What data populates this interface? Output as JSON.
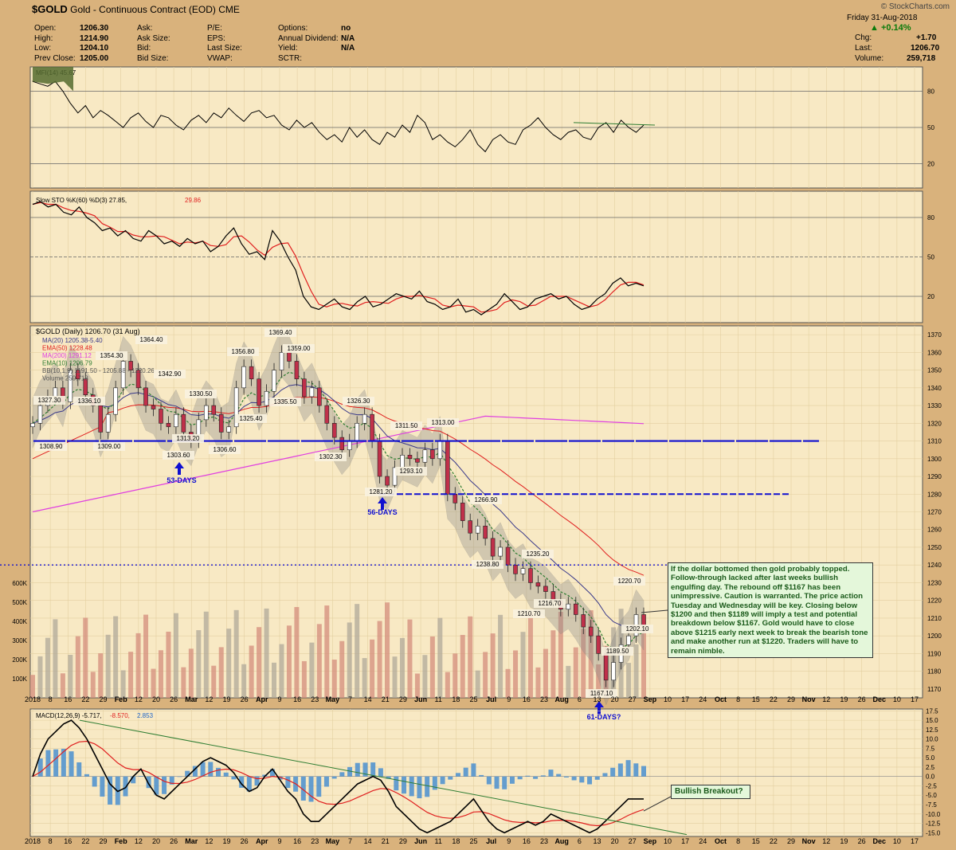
{
  "header": {
    "symbol": "$GOLD",
    "name": "Gold - Continuous Contract (EOD)",
    "exchange": "CME",
    "brand": "© StockCharts.com",
    "date": "Friday  31-Aug-2018",
    "change_pct": "+0.14%",
    "chg_label": "Chg:",
    "chg_value": "+1.70",
    "last_label": "Last:",
    "last_value": "1206.70",
    "volume_label": "Volume:",
    "volume_value": "259,718",
    "col1": [
      [
        "Open:",
        "1206.30"
      ],
      [
        "High:",
        "1214.90"
      ],
      [
        "Low:",
        "1204.10"
      ],
      [
        "Prev Close:",
        "1205.00"
      ]
    ],
    "col2": [
      "Ask:",
      "Ask Size:",
      "Bid:",
      "Bid Size:"
    ],
    "col3": [
      "P/E:",
      "EPS:",
      "Last Size:",
      "VWAP:"
    ],
    "col4": [
      [
        "Options:",
        "no"
      ],
      [
        "Annual Dividend:",
        "N/A"
      ],
      [
        "Yield:",
        "N/A"
      ],
      [
        "SCTR:",
        ""
      ]
    ]
  },
  "colors": {
    "bg": "#d9b27c",
    "panel": "#f8e9c4",
    "up": "#ffffff",
    "down": "#c0304a",
    "blue": "#1010d0",
    "green": "#2e7d32",
    "red": "#e02020",
    "magenta": "#e040e0",
    "ma20": "#3a3a8a"
  },
  "mfi": {
    "label": "MFI(14) 45.67",
    "ticks": [
      "80",
      "50",
      "20"
    ]
  },
  "sto": {
    "label": "Slow STO %K(60) %D(3) 27.85,",
    "label2": "29.86",
    "ticks": [
      "80",
      "50",
      "20"
    ]
  },
  "main": {
    "label": "$GOLD (Daily) 1206.70 (31 Aug)",
    "legend": [
      {
        "text": "MA(20) 1205.38-5.40",
        "color": "#3a3a8a"
      },
      {
        "text": "EMA(50) 1228.48",
        "color": "#e02020"
      },
      {
        "text": "MA(200) 1291.12",
        "color": "#e040e0"
      },
      {
        "text": "EMA(10) 1206.79",
        "color": "#2e7d32"
      },
      {
        "text": "BB(10,1,9) 1191.50 - 1205.88 - 1220.26",
        "color": "#555555"
      },
      {
        "text": "Volume 259,718",
        "color": "#555555"
      }
    ],
    "price_ticks": [
      "1370",
      "1360",
      "1350",
      "1340",
      "1330",
      "1320",
      "1310",
      "1300",
      "1290",
      "1280",
      "1270",
      "1260",
      "1250",
      "1240",
      "1230",
      "1220",
      "1210",
      "1200",
      "1190",
      "1180",
      "1170"
    ],
    "volume_ticks": [
      "600K",
      "500K",
      "400K",
      "300K",
      "200K",
      "100K"
    ],
    "annotations": [
      "1327.30",
      "1308.90",
      "1336.10",
      "1354.30",
      "1309.00",
      "1364.40",
      "1342.90",
      "1303.60",
      "1313.20",
      "1330.50",
      "1306.60",
      "1356.80",
      "1325.40",
      "1369.40",
      "1335.50",
      "1359.00",
      "1302.30",
      "1326.30",
      "1311.50",
      "1281.20",
      "1293.10",
      "1313.00",
      "1266.90",
      "1238.80",
      "1235.20",
      "1216.70",
      "1210.70",
      "1220.70",
      "1202.10",
      "1189.50",
      "1167.10"
    ],
    "cycle_labels": [
      "53-DAYS",
      "56-DAYS",
      "61-DAYS?"
    ],
    "note": "If the dollar bottomed then gold probably topped. Follow-through lacked after last weeks bullish engulfing day. The rebound off $1167 has been unimpressive. Caution is warranted. The price action Tuesday and Wednesday will be key. Closing below $1200 and then $1189 will imply a test and potential breakdown below $1167. Gold would have to close above $1215 early next week to break the bearish tone and make another run at $1220. Traders will have to remain nimble."
  },
  "macd": {
    "label": "MACD(12,26,9) -5.717,",
    "label2": "-8.570,",
    "label3": "2.853",
    "ticks": [
      "17.5",
      "15.0",
      "12.5",
      "10.0",
      "7.5",
      "5.0",
      "2.5",
      "0.0",
      "-2.5",
      "-5.0",
      "-7.5",
      "-10.0",
      "-12.5",
      "-15.0"
    ],
    "callout": "Bullish Breakout?"
  },
  "x_axis": [
    "2018",
    "8",
    "16",
    "22",
    "29",
    "Feb",
    "12",
    "20",
    "26",
    "Mar",
    "12",
    "19",
    "26",
    "Apr",
    "9",
    "16",
    "23",
    "May",
    "7",
    "14",
    "21",
    "29",
    "Jun",
    "11",
    "18",
    "25",
    "Jul",
    "9",
    "16",
    "23",
    "Aug",
    "6",
    "13",
    "20",
    "27",
    "Sep",
    "10",
    "17",
    "24",
    "Oct",
    "8",
    "15",
    "22",
    "29",
    "Nov",
    "12",
    "19",
    "26",
    "Dec",
    "10",
    "17"
  ],
  "chart_data": {
    "type": "candlestick",
    "title": "$GOLD (Daily) 1206.70 (31 Aug)",
    "annotated_prices": [
      {
        "label": "1327.30",
        "value": 1327.3
      },
      {
        "label": "1308.90",
        "value": 1308.9
      },
      {
        "label": "1336.10",
        "value": 1336.1
      },
      {
        "label": "1354.30",
        "value": 1354.3
      },
      {
        "label": "1309.00",
        "value": 1309.0
      },
      {
        "label": "1364.40",
        "value": 1364.4
      },
      {
        "label": "1342.90",
        "value": 1342.9
      },
      {
        "label": "1303.60",
        "value": 1303.6
      },
      {
        "label": "1313.20",
        "value": 1313.2
      },
      {
        "label": "1330.50",
        "value": 1330.5
      },
      {
        "label": "1306.60",
        "value": 1306.6
      },
      {
        "label": "1356.80",
        "value": 1356.8
      },
      {
        "label": "1325.40",
        "value": 1325.4
      },
      {
        "label": "1369.40",
        "value": 1369.4
      },
      {
        "label": "1335.50",
        "value": 1335.5
      },
      {
        "label": "1359.00",
        "value": 1359.0
      },
      {
        "label": "1302.30",
        "value": 1302.3
      },
      {
        "label": "1326.30",
        "value": 1326.3
      },
      {
        "label": "1311.50",
        "value": 1311.5
      },
      {
        "label": "1281.20",
        "value": 1281.2
      },
      {
        "label": "1293.10",
        "value": 1293.1
      },
      {
        "label": "1313.00",
        "value": 1313.0
      },
      {
        "label": "1266.90",
        "value": 1266.9
      },
      {
        "label": "1238.80",
        "value": 1238.8
      },
      {
        "label": "1235.20",
        "value": 1235.2
      },
      {
        "label": "1216.70",
        "value": 1216.7
      },
      {
        "label": "1210.70",
        "value": 1210.7
      },
      {
        "label": "1220.70",
        "value": 1220.7
      },
      {
        "label": "1202.10",
        "value": 1202.1
      },
      {
        "label": "1189.50",
        "value": 1189.5
      },
      {
        "label": "1167.10",
        "value": 1167.1
      }
    ],
    "ylim": [
      1165,
      1375
    ],
    "mfi_ylim": [
      0,
      100
    ],
    "macd_ylim": [
      -16,
      18
    ]
  }
}
